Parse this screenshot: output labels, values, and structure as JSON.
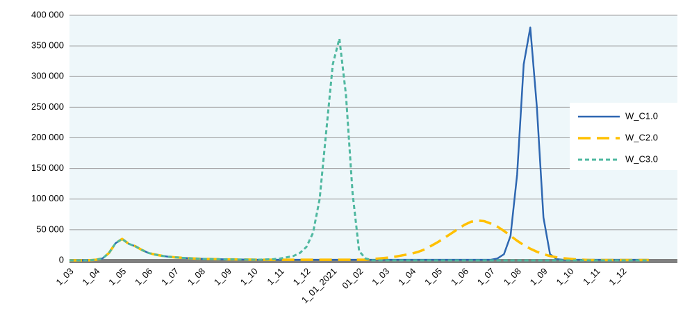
{
  "chart_data": {
    "type": "line",
    "categories": [
      "1_03",
      null,
      null,
      null,
      "1_04",
      null,
      null,
      null,
      "1_05",
      null,
      null,
      null,
      "1_06",
      null,
      null,
      null,
      "1_07",
      null,
      null,
      null,
      "1_08",
      null,
      null,
      null,
      "1_09",
      null,
      null,
      null,
      "1_10",
      null,
      null,
      null,
      "1_11",
      null,
      null,
      null,
      "1_12",
      null,
      null,
      null,
      "1_01_2021",
      null,
      null,
      null,
      "01_02",
      null,
      null,
      null,
      "1_03",
      null,
      null,
      null,
      "1_04",
      null,
      null,
      null,
      "1_05",
      null,
      null,
      null,
      "1_06",
      null,
      null,
      null,
      "1_07",
      null,
      null,
      null,
      "1_08",
      null,
      null,
      null,
      "1_09",
      null,
      null,
      null,
      "1_10",
      null,
      null,
      null,
      "1_11",
      null,
      null,
      null,
      "1_12",
      null,
      null,
      null,
      null
    ],
    "series": [
      {
        "name": "W_C1.0",
        "color": "#2e67b1",
        "line_style": "solid",
        "values": [
          0,
          0,
          0,
          200,
          1000,
          3000,
          12000,
          28000,
          35000,
          27000,
          23000,
          17000,
          12000,
          9500,
          7500,
          6000,
          5000,
          4200,
          3500,
          3000,
          2500,
          2200,
          2000,
          1800,
          1600,
          1500,
          1400,
          1300,
          1200,
          1000,
          1000,
          1000,
          1000,
          1000,
          1000,
          1000,
          1000,
          1000,
          1000,
          1000,
          1000,
          1000,
          1000,
          1000,
          1000,
          1000,
          1000,
          1000,
          1000,
          1000,
          1000,
          1000,
          1000,
          1000,
          1000,
          1000,
          1000,
          1000,
          1000,
          1000,
          1000,
          1000,
          1000,
          1000,
          1000,
          3000,
          10000,
          40000,
          140000,
          320000,
          380000,
          250000,
          70000,
          10000,
          2000,
          1000,
          1000,
          1000,
          1000,
          1000,
          1000,
          1000,
          1000,
          1000,
          1000,
          1000,
          1000,
          1000,
          1000
        ]
      },
      {
        "name": "W_C2.0",
        "color": "#ffc000",
        "line_style": "long-dash",
        "values": [
          0,
          0,
          0,
          200,
          1000,
          3000,
          12000,
          28000,
          35000,
          27000,
          23000,
          17000,
          12000,
          9500,
          7500,
          6000,
          5000,
          4200,
          3500,
          3000,
          2500,
          2200,
          2000,
          1800,
          1600,
          1500,
          1400,
          1300,
          1200,
          1000,
          1000,
          1000,
          1000,
          1000,
          1000,
          1000,
          1000,
          1000,
          1000,
          1000,
          1000,
          1000,
          1000,
          1000,
          1000,
          1000,
          2000,
          3000,
          4000,
          5000,
          7000,
          9000,
          11000,
          14000,
          18000,
          24000,
          30000,
          37000,
          44000,
          51000,
          58000,
          63000,
          65000,
          64000,
          60000,
          55000,
          48000,
          40000,
          32000,
          25000,
          19000,
          14000,
          10000,
          7000,
          5000,
          3500,
          2500,
          1500,
          1000,
          500,
          500,
          500,
          500,
          500,
          500,
          500,
          500,
          500,
          500
        ]
      },
      {
        "name": "W_C3.0",
        "color": "#4fb8a0",
        "line_style": "short-dash",
        "values": [
          0,
          0,
          0,
          200,
          1000,
          3000,
          12000,
          28000,
          35000,
          27000,
          23000,
          17000,
          12000,
          9500,
          7500,
          6000,
          5000,
          4200,
          3500,
          3000,
          2500,
          2200,
          2000,
          1800,
          1600,
          1500,
          1400,
          1300,
          1200,
          1200,
          1500,
          2000,
          3000,
          5000,
          7000,
          12000,
          22000,
          45000,
          100000,
          210000,
          320000,
          362000,
          270000,
          110000,
          15000,
          3000,
          0,
          0,
          0,
          0,
          0,
          0,
          0,
          0,
          0,
          0,
          0,
          0,
          0,
          0,
          0,
          0,
          0,
          0,
          0,
          0,
          0,
          0,
          0,
          0,
          0,
          0,
          0,
          0,
          0,
          0,
          0,
          0,
          0,
          0,
          0,
          0,
          0,
          0,
          0,
          0,
          0,
          0,
          0
        ]
      }
    ],
    "ylim": [
      0,
      400000
    ],
    "yticks": [
      0,
      {
        "value": 50000,
        "label": "50 000"
      },
      {
        "value": 100000,
        "label": "100 000"
      },
      {
        "value": 150000,
        "label": "150 000"
      },
      {
        "value": 200000,
        "label": "200 000"
      },
      {
        "value": 250000,
        "label": "250 000"
      },
      {
        "value": 300000,
        "label": "300 000"
      },
      {
        "value": 350000,
        "label": "350 000"
      },
      {
        "value": 400000,
        "label": "400 000"
      }
    ],
    "grid": true,
    "legend": "right"
  }
}
